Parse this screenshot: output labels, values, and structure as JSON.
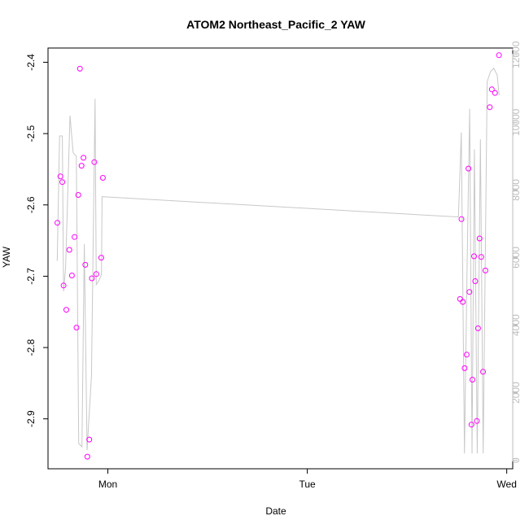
{
  "chart_data": {
    "type": "scatter",
    "title": "ATOM2 Northeast_Pacific_2 YAW",
    "xlabel": "Date",
    "ylabel": "YAW",
    "x_ticks": [
      "Mon",
      "Tue",
      "Wed"
    ],
    "x_tick_positions_days": [
      0,
      1,
      2
    ],
    "xlim_days": [
      -0.3,
      2.03
    ],
    "ylim": [
      -2.97,
      -2.38
    ],
    "y_ticks": [
      -2.9,
      -2.8,
      -2.7,
      -2.6,
      -2.5,
      -2.4
    ],
    "y2_ticks": [
      0,
      2000,
      4000,
      6000,
      8000,
      10000,
      12000
    ],
    "y2lim": [
      -250,
      12200
    ],
    "point_color": "#ff00ff",
    "line_color": "#c8c8c8",
    "points": [
      {
        "x": -0.253,
        "y": -2.625
      },
      {
        "x": -0.238,
        "y": -2.56
      },
      {
        "x": -0.228,
        "y": -2.568
      },
      {
        "x": -0.222,
        "y": -2.713
      },
      {
        "x": -0.208,
        "y": -2.747
      },
      {
        "x": -0.193,
        "y": -2.663
      },
      {
        "x": -0.18,
        "y": -2.699
      },
      {
        "x": -0.167,
        "y": -2.645
      },
      {
        "x": -0.157,
        "y": -2.772
      },
      {
        "x": -0.148,
        "y": -2.586
      },
      {
        "x": -0.14,
        "y": -2.409
      },
      {
        "x": -0.132,
        "y": -2.545
      },
      {
        "x": -0.122,
        "y": -2.534
      },
      {
        "x": -0.113,
        "y": -2.684
      },
      {
        "x": -0.103,
        "y": -2.953
      },
      {
        "x": -0.093,
        "y": -2.929
      },
      {
        "x": -0.08,
        "y": -2.703
      },
      {
        "x": -0.068,
        "y": -2.54
      },
      {
        "x": -0.058,
        "y": -2.697
      },
      {
        "x": -0.033,
        "y": -2.674
      },
      {
        "x": -0.025,
        "y": -2.562
      },
      {
        "x": 1.766,
        "y": -2.732
      },
      {
        "x": 1.773,
        "y": -2.62
      },
      {
        "x": 1.78,
        "y": -2.736
      },
      {
        "x": 1.789,
        "y": -2.829
      },
      {
        "x": 1.799,
        "y": -2.81
      },
      {
        "x": 1.808,
        "y": -2.549
      },
      {
        "x": 1.813,
        "y": -2.722
      },
      {
        "x": 1.823,
        "y": -2.908
      },
      {
        "x": 1.828,
        "y": -2.845
      },
      {
        "x": 1.836,
        "y": -2.672
      },
      {
        "x": 1.842,
        "y": -2.707
      },
      {
        "x": 1.85,
        "y": -2.903
      },
      {
        "x": 1.856,
        "y": -2.773
      },
      {
        "x": 1.864,
        "y": -2.647
      },
      {
        "x": 1.872,
        "y": -2.673
      },
      {
        "x": 1.881,
        "y": -2.834
      },
      {
        "x": 1.893,
        "y": -2.692
      },
      {
        "x": 1.915,
        "y": -2.463
      },
      {
        "x": 1.925,
        "y": -2.438
      },
      {
        "x": 1.941,
        "y": -2.443
      },
      {
        "x": 1.961,
        "y": -2.39
      }
    ],
    "line": [
      {
        "x": -0.254,
        "y2": 5900
      },
      {
        "x": -0.242,
        "y2": 9600
      },
      {
        "x": -0.228,
        "y2": 9600
      },
      {
        "x": -0.222,
        "y2": 5000
      },
      {
        "x": -0.212,
        "y2": 5700
      },
      {
        "x": -0.19,
        "y2": 10200
      },
      {
        "x": -0.174,
        "y2": 9100
      },
      {
        "x": -0.158,
        "y2": 9000
      },
      {
        "x": -0.146,
        "y2": 500
      },
      {
        "x": -0.13,
        "y2": 400
      },
      {
        "x": -0.118,
        "y2": 6400
      },
      {
        "x": -0.104,
        "y2": 300
      },
      {
        "x": -0.082,
        "y2": 2500
      },
      {
        "x": -0.064,
        "y2": 10700
      },
      {
        "x": -0.058,
        "y2": 5200
      },
      {
        "x": -0.046,
        "y2": 5300
      },
      {
        "x": -0.032,
        "y2": 5500
      },
      {
        "x": -0.029,
        "y2": 7800
      },
      {
        "x": 1.758,
        "y2": 7200
      },
      {
        "x": 1.772,
        "y2": 9700
      },
      {
        "x": 1.788,
        "y2": 200
      },
      {
        "x": 1.802,
        "y2": 6000
      },
      {
        "x": 1.814,
        "y2": 10400
      },
      {
        "x": 1.826,
        "y2": 200
      },
      {
        "x": 1.838,
        "y2": 9200
      },
      {
        "x": 1.852,
        "y2": 200
      },
      {
        "x": 1.868,
        "y2": 9500
      },
      {
        "x": 1.882,
        "y2": 200
      },
      {
        "x": 1.902,
        "y2": 11200
      },
      {
        "x": 1.918,
        "y2": 11500
      },
      {
        "x": 1.935,
        "y2": 11600
      },
      {
        "x": 1.952,
        "y2": 11400
      },
      {
        "x": 1.962,
        "y2": 10800
      }
    ]
  }
}
